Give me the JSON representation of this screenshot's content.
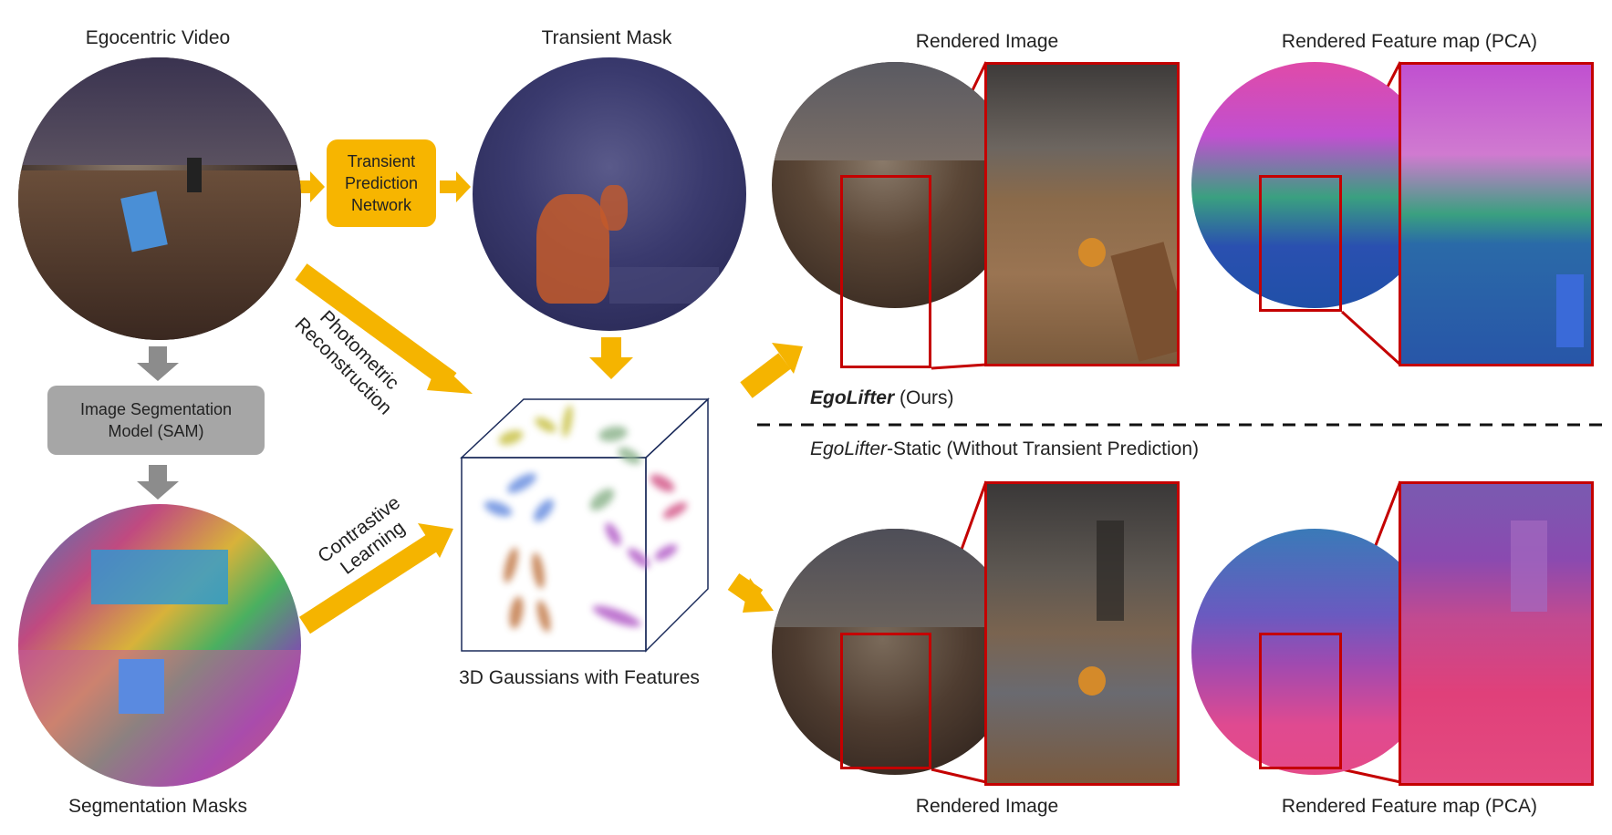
{
  "labels": {
    "egocentric_video": "Egocentric Video",
    "transient_mask": "Transient Mask",
    "rendered_image_top": "Rendered Image",
    "rendered_feature_top": "Rendered Feature map (PCA)",
    "rendered_image_bottom": "Rendered Image",
    "rendered_feature_bottom": "Rendered Feature map (PCA)",
    "segmentation_masks": "Segmentation Masks",
    "gaussians": "3D Gaussians with Features"
  },
  "boxes": {
    "transient_network": [
      "Transient",
      "Prediction",
      "Network"
    ],
    "sam": [
      "Image Segmentation",
      "Model (SAM)"
    ]
  },
  "arrow_labels": {
    "photometric": [
      "Photometric",
      "Reconstruction"
    ],
    "contrastive": [
      "Contrastive",
      "Learning"
    ]
  },
  "methods": {
    "ours_name": "EgoLifter",
    "ours_suffix": " (Ours)",
    "static_name": "EgoLifter",
    "static_suffix": "-Static (Without Transient Prediction)"
  },
  "colors": {
    "arrow": "#f5b400",
    "gray_arrow": "#8c8c8c",
    "crop_border": "#c40000",
    "box_yellow": "#f7b500",
    "box_gray": "#a6a6a6"
  }
}
